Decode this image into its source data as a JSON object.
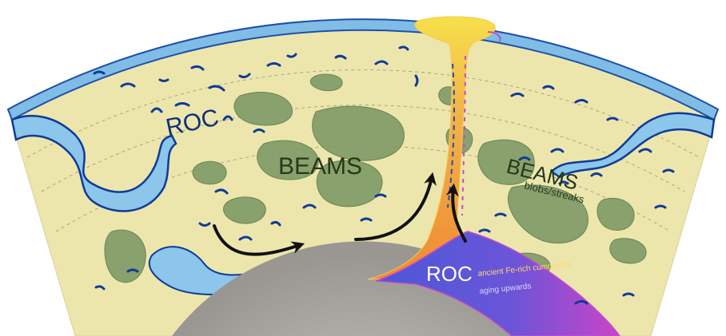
{
  "labels": {
    "roc_left": "ROC",
    "beams_center": "BEAMS",
    "beams_right": "BEAMS",
    "beams_right_sub": "blobs/streaks",
    "roc_bottom": "ROC",
    "cumulate_note_1": "ancient Fe-rich cummulate",
    "cumulate_note_2": "aging upwards"
  },
  "colors": {
    "mantle": "#ece6ad",
    "mantle_edge": "#d8d29a",
    "crust_ocean": "#7fbde6",
    "crust_dark": "#1f4fa8",
    "slab_dark": "#0f3a99",
    "beams_blob": "#7f9a66",
    "beams_blob_edge": "#5f7a4a",
    "plume_core": "#f4a13b",
    "plume_edge": "#f7c850",
    "plume_top": "#f6e34a",
    "core": "#a9a6a1",
    "llsvp": "#5b5fd6",
    "llsvp_edge": "#c64ac8",
    "arrow": "#111111"
  },
  "icons": [
    "flow-arrow-icon"
  ]
}
